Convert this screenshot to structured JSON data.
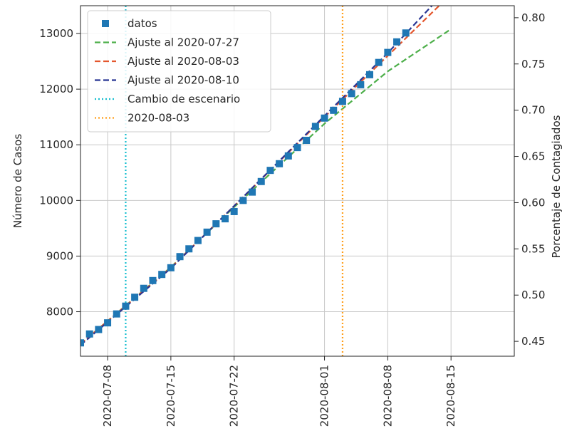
{
  "chart_data": {
    "type": "scatter",
    "title": "",
    "xlabel": "",
    "ylabel": "Número de Casos",
    "ylabel_right": "Porcentaje de Contagiados",
    "x_axis": {
      "type": "date",
      "range": [
        "2020-07-05",
        "2020-08-22"
      ],
      "ticks": [
        "2020-07-08",
        "2020-07-15",
        "2020-07-22",
        "2020-08-01",
        "2020-08-08",
        "2020-08-15"
      ]
    },
    "y_axis": {
      "range": [
        7200,
        13500
      ],
      "ticks": [
        8000,
        9000,
        10000,
        11000,
        12000,
        13000
      ],
      "tick_labels": [
        "8000",
        "9000",
        "10000",
        "11000",
        "12000",
        "13000"
      ]
    },
    "y_axis_right": {
      "range": [
        0.4339,
        0.813
      ],
      "ticks": [
        0.45,
        0.5,
        0.55,
        0.6,
        0.65,
        0.7,
        0.75,
        0.8
      ],
      "tick_labels": [
        "0.45",
        "0.50",
        "0.55",
        "0.60",
        "0.65",
        "0.70",
        "0.75",
        "0.80"
      ]
    },
    "grid": true,
    "legend_position": "top-left",
    "series": [
      {
        "name": "datos",
        "kind": "scatter",
        "marker": "square",
        "color": "#1f77b4",
        "x": [
          "2020-07-05",
          "2020-07-06",
          "2020-07-07",
          "2020-07-08",
          "2020-07-09",
          "2020-07-10",
          "2020-07-11",
          "2020-07-12",
          "2020-07-13",
          "2020-07-14",
          "2020-07-15",
          "2020-07-16",
          "2020-07-17",
          "2020-07-18",
          "2020-07-19",
          "2020-07-20",
          "2020-07-21",
          "2020-07-22",
          "2020-07-23",
          "2020-07-24",
          "2020-07-25",
          "2020-07-26",
          "2020-07-27",
          "2020-07-28",
          "2020-07-29",
          "2020-07-30",
          "2020-07-31",
          "2020-08-01",
          "2020-08-02",
          "2020-08-03",
          "2020-08-04",
          "2020-08-05",
          "2020-08-06",
          "2020-08-07",
          "2020-08-08",
          "2020-08-09",
          "2020-08-10"
        ],
        "y": [
          7440,
          7600,
          7680,
          7800,
          7960,
          8100,
          8260,
          8420,
          8560,
          8670,
          8790,
          8990,
          9130,
          9280,
          9430,
          9580,
          9670,
          9800,
          10000,
          10150,
          10340,
          10540,
          10660,
          10800,
          10950,
          11080,
          11330,
          11480,
          11620,
          11780,
          11920,
          12080,
          12260,
          12480,
          12660,
          12850,
          13010
        ]
      },
      {
        "name": "Ajuste al 2020-07-27",
        "kind": "line",
        "style": "dashed",
        "color": "#4daf4a",
        "x": [
          "2020-07-05",
          "2020-07-15",
          "2020-07-22",
          "2020-08-01",
          "2020-08-08",
          "2020-08-15"
        ],
        "y": [
          7420,
          8800,
          9880,
          11380,
          12320,
          13080
        ]
      },
      {
        "name": "Ajuste al 2020-08-03",
        "kind": "line",
        "style": "dashed",
        "color": "#e4572e",
        "x": [
          "2020-07-05",
          "2020-07-15",
          "2020-07-22",
          "2020-08-01",
          "2020-08-08",
          "2020-08-14"
        ],
        "y": [
          7420,
          8790,
          9900,
          11500,
          12600,
          13550
        ]
      },
      {
        "name": "Ajuste al 2020-08-10",
        "kind": "line",
        "style": "dashed",
        "color": "#283593",
        "x": [
          "2020-07-05",
          "2020-07-15",
          "2020-07-22",
          "2020-08-01",
          "2020-08-08",
          "2020-08-13"
        ],
        "y": [
          7400,
          8780,
          9900,
          11520,
          12650,
          13520
        ]
      },
      {
        "name": "Cambio de escenario",
        "kind": "vline",
        "style": "dotted",
        "color": "#17becf",
        "x": "2020-07-10"
      },
      {
        "name": "2020-08-03",
        "kind": "vline",
        "style": "dotted",
        "color": "#ff9f1c",
        "x": "2020-08-03"
      }
    ]
  }
}
